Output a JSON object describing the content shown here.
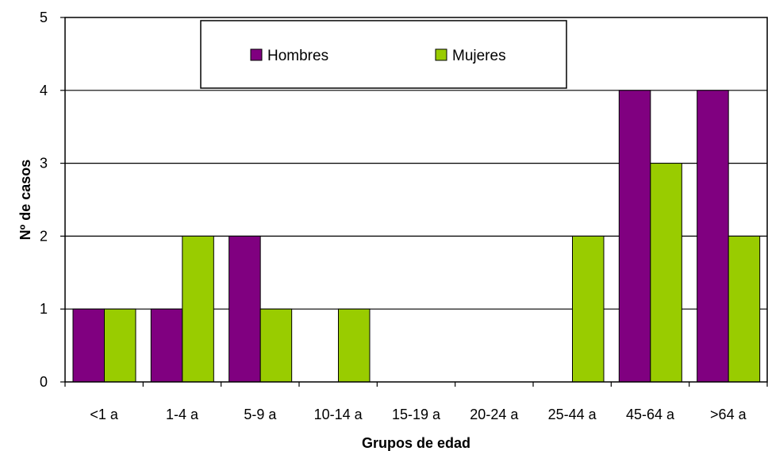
{
  "chart_data": {
    "type": "bar",
    "categories": [
      "<1 a",
      "1-4 a",
      "5-9 a",
      "10-14 a",
      "15-19 a",
      "20-24 a",
      "25-44 a",
      "45-64 a",
      ">64 a"
    ],
    "series": [
      {
        "name": "Hombres",
        "color": "#800080",
        "values": [
          1,
          1,
          2,
          0,
          0,
          0,
          0,
          4,
          4
        ]
      },
      {
        "name": "Mujeres",
        "color": "#99cc00",
        "values": [
          1,
          2,
          1,
          1,
          0,
          0,
          2,
          3,
          2
        ]
      }
    ],
    "title": "",
    "xlabel": "Grupos de edad",
    "ylabel": "Nº de casos",
    "ylim": [
      0,
      5
    ],
    "yticks": [
      0,
      1,
      2,
      3,
      4,
      5
    ],
    "grid": true,
    "legend_position": "top-center"
  }
}
